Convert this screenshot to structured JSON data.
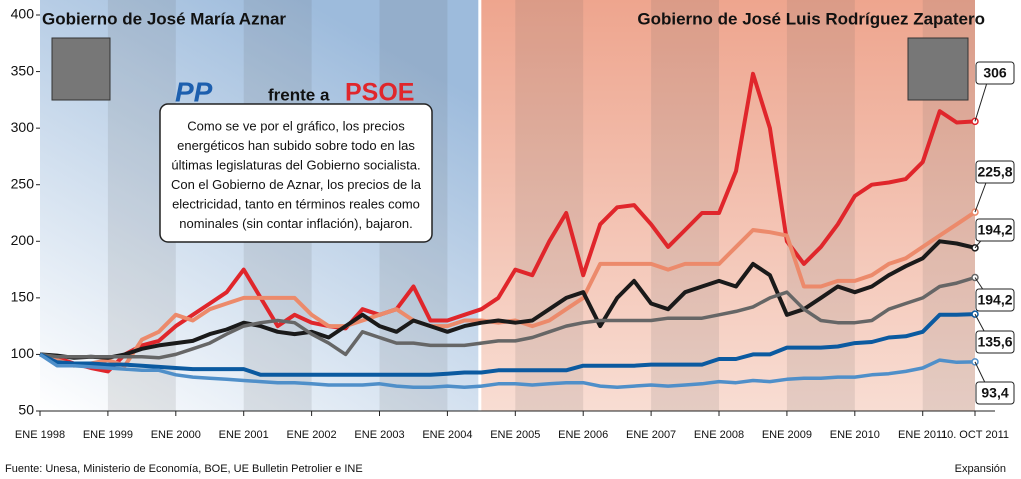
{
  "chart_data": {
    "type": "line",
    "periods": [
      {
        "label": "Gobierno de José María Aznar",
        "start": 1998,
        "end": 2004.47,
        "color": "#9dbbdc"
      },
      {
        "label": "Gobierno de José Luis Rodríguez Zapatero",
        "start": 2004.47,
        "end": 2011.77,
        "color": "#eea58e"
      }
    ],
    "logo": {
      "left": "PP",
      "middle": "frente a",
      "right": "PSOE"
    },
    "annotation": [
      "Como se ve por el gráfico, los precios",
      "energéticos han subido sobre todo en las",
      "últimas legislaturas del Gobierno socialista.",
      "Con el Gobierno de Aznar, los precios de la",
      "electricidad, tanto en términos reales como",
      "nominales (sin contar inflación), bajaron."
    ],
    "extra_label": "194,2",
    "source": "Fuente: Unesa, Ministerio de Economía, BOE, UE Bulletin Petrolier e INE",
    "credit": "Expansión",
    "x": [
      1998,
      1998.25,
      1998.5,
      1998.75,
      1999,
      1999.25,
      1999.5,
      1999.75,
      2000,
      2000.25,
      2000.5,
      2000.75,
      2001,
      2001.25,
      2001.5,
      2001.75,
      2002,
      2002.25,
      2002.5,
      2002.75,
      2003,
      2003.25,
      2003.5,
      2003.75,
      2004,
      2004.25,
      2004.5,
      2004.75,
      2005,
      2005.25,
      2005.5,
      2005.75,
      2006,
      2006.25,
      2006.5,
      2006.75,
      2007,
      2007.25,
      2007.5,
      2007.75,
      2008,
      2008.25,
      2008.5,
      2008.75,
      2009,
      2009.25,
      2009.5,
      2009.75,
      2010,
      2010.25,
      2010.5,
      2010.75,
      2011,
      2011.25,
      2011.5,
      2011.77
    ],
    "xlim": [
      1998,
      2011.77
    ],
    "xticks": [
      {
        "value": 1998,
        "label": "ENE 1998"
      },
      {
        "value": 1999,
        "label": "ENE 1999"
      },
      {
        "value": 2000,
        "label": "ENE 2000"
      },
      {
        "value": 2001,
        "label": "ENE 2001"
      },
      {
        "value": 2002,
        "label": "ENE 2002"
      },
      {
        "value": 2003,
        "label": "ENE 2003"
      },
      {
        "value": 2004,
        "label": "ENE 2004"
      },
      {
        "value": 2005,
        "label": "ENE 2005"
      },
      {
        "value": 2006,
        "label": "ENE 2006"
      },
      {
        "value": 2007,
        "label": "ENE 2007"
      },
      {
        "value": 2008,
        "label": "ENE 2008"
      },
      {
        "value": 2009,
        "label": "ENE 2009"
      },
      {
        "value": 2010,
        "label": "ENE 2010"
      },
      {
        "value": 2011,
        "label": "ENE 2011"
      },
      {
        "value": 2011.77,
        "label": "10. OCT 2011"
      }
    ],
    "ylim": [
      50,
      400
    ],
    "yticks": [
      50,
      100,
      150,
      200,
      250,
      300,
      350,
      400
    ],
    "grid": false,
    "series": [
      {
        "color": "#e0262b",
        "end_label": "306",
        "values": [
          100,
          97,
          92,
          88,
          85,
          100,
          108,
          112,
          125,
          135,
          145,
          155,
          175,
          150,
          125,
          135,
          128,
          125,
          123,
          140,
          135,
          140,
          160,
          130,
          130,
          135,
          140,
          150,
          175,
          170,
          200,
          225,
          170,
          215,
          230,
          232,
          215,
          195,
          210,
          225,
          225,
          262,
          348,
          300,
          200,
          180,
          195,
          215,
          240,
          250,
          252,
          255,
          270,
          315,
          305,
          306
        ]
      },
      {
        "color": "#ec8a6b",
        "end_label": "225,8",
        "values": [
          100,
          95,
          90,
          92,
          95,
          90,
          113,
          120,
          135,
          130,
          140,
          145,
          150,
          150,
          150,
          150,
          135,
          125,
          125,
          130,
          135,
          140,
          130,
          125,
          125,
          130,
          130,
          128,
          130,
          125,
          130,
          140,
          150,
          180,
          180,
          180,
          180,
          175,
          180,
          180,
          180,
          195,
          210,
          208,
          205,
          160,
          160,
          165,
          165,
          170,
          180,
          185,
          195,
          205,
          215,
          225.8
        ]
      },
      {
        "color": "#1a1a1a",
        "end_label": "194,2",
        "values": [
          100,
          99,
          97,
          98,
          97,
          100,
          105,
          108,
          110,
          112,
          118,
          122,
          128,
          125,
          120,
          118,
          120,
          115,
          125,
          135,
          125,
          120,
          130,
          125,
          120,
          125,
          128,
          130,
          128,
          130,
          140,
          150,
          155,
          125,
          150,
          165,
          145,
          140,
          155,
          160,
          165,
          160,
          180,
          170,
          135,
          140,
          150,
          160,
          155,
          160,
          170,
          178,
          185,
          200,
          198,
          194.2
        ]
      },
      {
        "color": "#666666",
        "values": [
          100,
          98,
          98,
          98,
          98,
          98,
          98,
          97,
          100,
          105,
          110,
          118,
          125,
          128,
          130,
          128,
          118,
          110,
          100,
          120,
          115,
          110,
          110,
          108,
          108,
          108,
          110,
          112,
          112,
          115,
          120,
          125,
          128,
          130,
          130,
          130,
          130,
          132,
          132,
          132,
          135,
          138,
          142,
          150,
          155,
          140,
          130,
          128,
          128,
          130,
          140,
          145,
          150,
          160,
          163,
          168
        ]
      },
      {
        "color": "#0b5aa0",
        "end_label": "135,6",
        "values": [
          100,
          93,
          92,
          92,
          91,
          91,
          90,
          89,
          88,
          87,
          87,
          87,
          87,
          82,
          82,
          82,
          82,
          82,
          82,
          82,
          82,
          82,
          82,
          82,
          83,
          84,
          84,
          86,
          86,
          86,
          86,
          86,
          90,
          90,
          90,
          90,
          91,
          91,
          91,
          91,
          96,
          96,
          100,
          100,
          106,
          106,
          106,
          107,
          110,
          111,
          115,
          116,
          120,
          135,
          135,
          135.6
        ]
      },
      {
        "color": "#4f8fc9",
        "end_label": "93,4",
        "values": [
          100,
          90,
          90,
          89,
          88,
          87,
          86,
          86,
          82,
          80,
          79,
          78,
          77,
          76,
          75,
          75,
          74,
          73,
          73,
          73,
          74,
          72,
          71,
          71,
          72,
          71,
          72,
          74,
          74,
          73,
          74,
          75,
          75,
          72,
          71,
          72,
          73,
          72,
          73,
          74,
          76,
          75,
          77,
          76,
          78,
          79,
          79,
          80,
          80,
          82,
          83,
          85,
          88,
          95,
          93,
          93.4
        ]
      }
    ]
  }
}
